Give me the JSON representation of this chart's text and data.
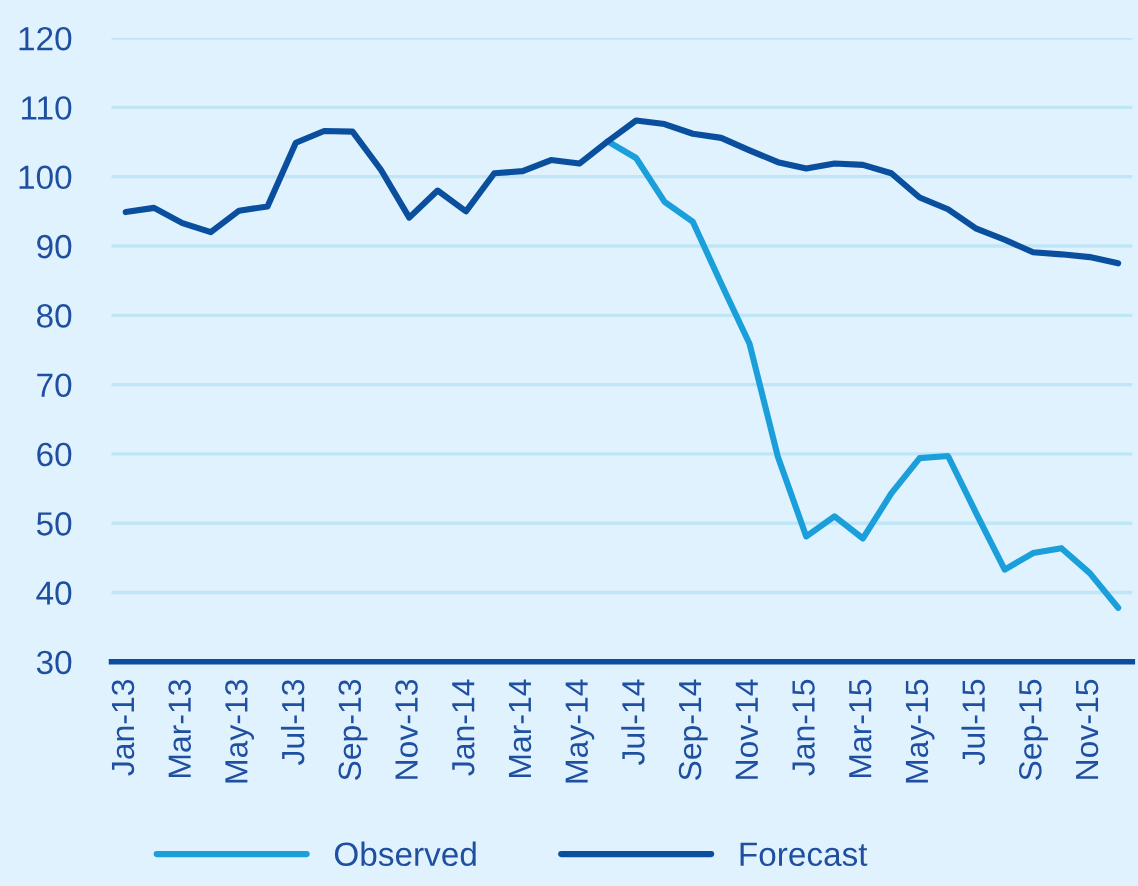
{
  "chart_data": {
    "type": "line",
    "categories": [
      "Jan-13",
      null,
      "Mar-13",
      null,
      "May-13",
      null,
      "Jul-13",
      null,
      "Sep-13",
      null,
      "Nov-13",
      null,
      "Jan-14",
      null,
      "Mar-14",
      null,
      "May-14",
      null,
      "Jul-14",
      null,
      "Sep-14",
      null,
      "Nov-14",
      null,
      "Jan-15",
      null,
      "Mar-15",
      null,
      "May-15",
      null,
      "Jul-15",
      null,
      "Sep-15",
      null,
      "Nov-15",
      null
    ],
    "series": [
      {
        "name": "Observed",
        "color": "#1a9fdb",
        "values": [
          null,
          null,
          null,
          null,
          null,
          null,
          null,
          null,
          null,
          null,
          null,
          null,
          null,
          null,
          null,
          null,
          null,
          105.1,
          102.7,
          96.4,
          93.5,
          84.6,
          75.9,
          59.6,
          48.1,
          51.0,
          47.8,
          54.3,
          59.4,
          59.7,
          51.4,
          43.3,
          45.7,
          46.4,
          42.8,
          37.8
        ]
      },
      {
        "name": "Forecast",
        "color": "#0a4f9e",
        "values": [
          94.9,
          95.5,
          93.3,
          92.0,
          95.1,
          95.7,
          104.9,
          106.6,
          106.5,
          101.0,
          94.1,
          98.0,
          95.0,
          100.5,
          100.8,
          102.4,
          101.9,
          105.1,
          108.1,
          107.6,
          106.2,
          105.6,
          103.8,
          102.1,
          101.2,
          101.9,
          101.7,
          100.5,
          97.0,
          95.3,
          92.5,
          90.9,
          89.1,
          88.8,
          88.4,
          87.5
        ]
      }
    ],
    "ylim": [
      30,
      120
    ],
    "yticks": [
      30,
      40,
      50,
      60,
      70,
      80,
      90,
      100,
      110,
      120
    ],
    "grid": "y",
    "legend": "bottom",
    "line_style": "solid",
    "marker": "none"
  }
}
